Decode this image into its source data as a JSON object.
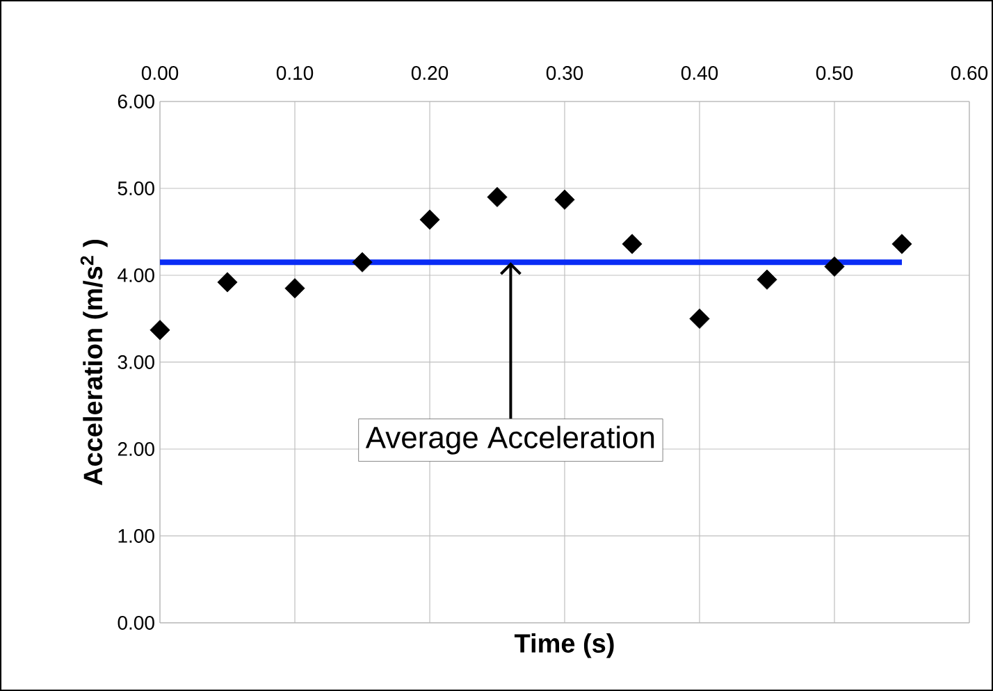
{
  "chart_data": {
    "type": "scatter",
    "xlabel": "Time (s)",
    "ylabel": "Acceleration (m/s$^{2}$ )",
    "x": [
      0.0,
      0.05,
      0.1,
      0.15,
      0.2,
      0.25,
      0.3,
      0.35,
      0.4,
      0.45,
      0.5,
      0.55
    ],
    "series": [
      {
        "color": "#000000",
        "marker": "diamond",
        "values": [
          3.37,
          3.92,
          3.85,
          4.15,
          4.64,
          4.9,
          4.87,
          4.36,
          3.5,
          3.95,
          4.1,
          4.36
        ]
      },
      {
        "type": "line",
        "color": "#0a2cf5",
        "marker": "none",
        "x": [
          0.0,
          0.55
        ],
        "values": [
          4.15,
          4.15
        ]
      }
    ],
    "annotations": [
      {
        "text": "Average Acceleration",
        "x": 0.26,
        "y": 4.15
      }
    ],
    "xlim": [
      0,
      0.6
    ],
    "ylim": [
      0,
      6
    ],
    "xticks": [
      {
        "value": 0,
        "label": "0.00"
      },
      {
        "value": 0.1,
        "label": "0.10"
      },
      {
        "value": 0.2,
        "label": "0.20"
      },
      {
        "value": 0.3,
        "label": "0.30"
      },
      {
        "value": 0.4,
        "label": "0.40"
      },
      {
        "value": 0.5,
        "label": "0.50"
      },
      {
        "value": 0.6,
        "label": "0.60"
      }
    ],
    "yticks": [
      {
        "value": 0,
        "label": "0.00"
      },
      {
        "value": 1,
        "label": "1.00"
      },
      {
        "value": 2,
        "label": "2.00"
      },
      {
        "value": 3,
        "label": "3.00"
      },
      {
        "value": 4,
        "label": "4.00"
      },
      {
        "value": 5,
        "label": "5.00"
      },
      {
        "value": 6,
        "label": "6.00"
      }
    ],
    "grid": true
  }
}
